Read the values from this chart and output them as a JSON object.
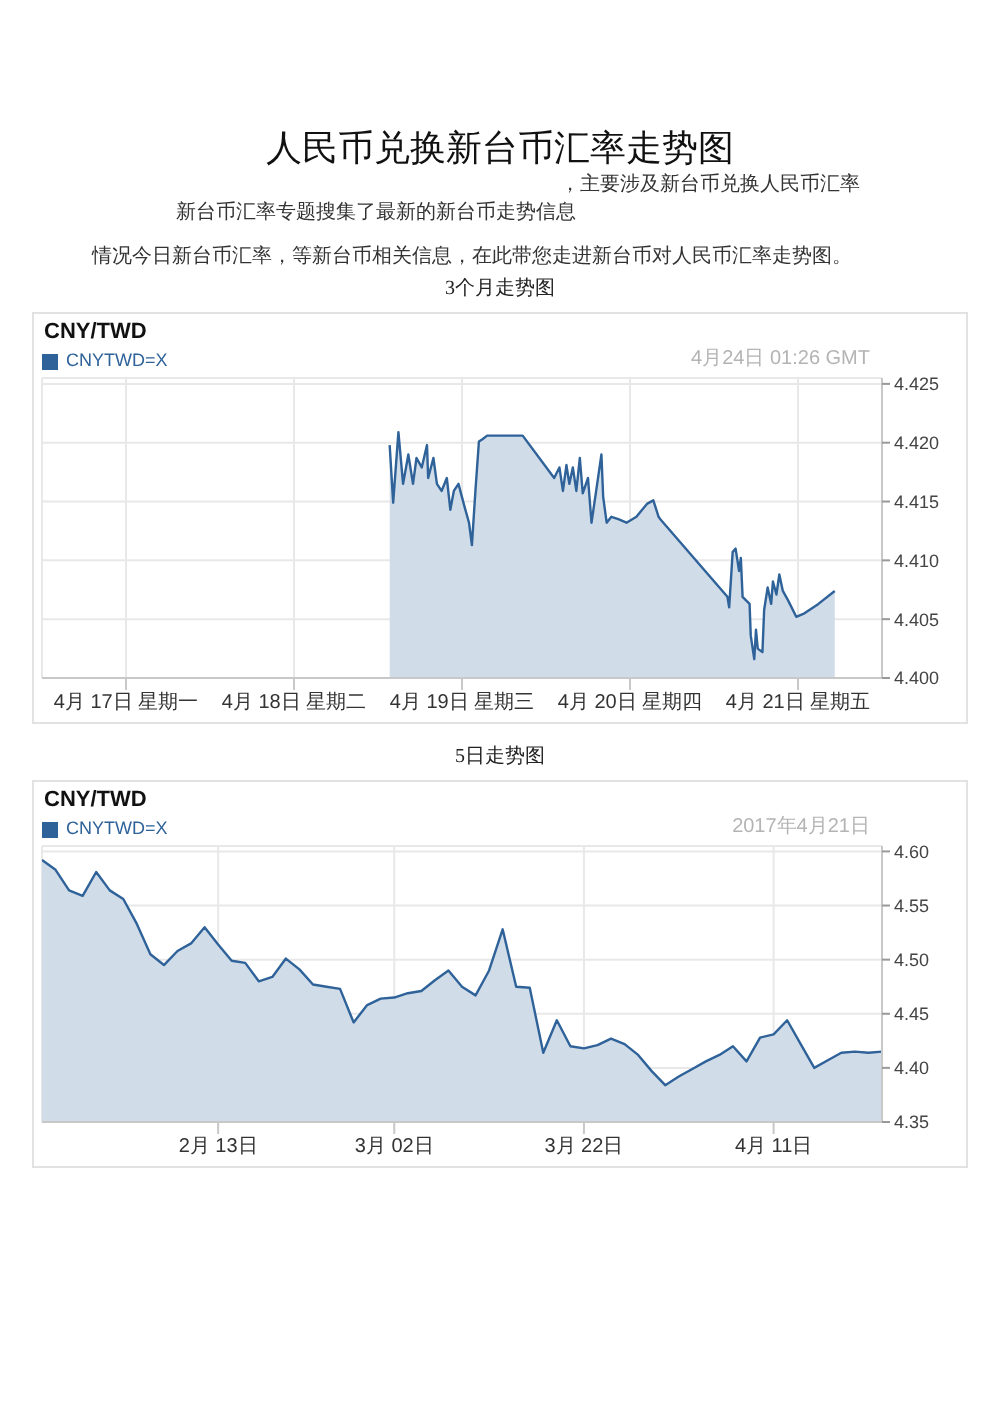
{
  "chart_data": [
    {
      "type": "area",
      "title": "CNY/TWD",
      "subtitle": "4月24日 01:26 GMT",
      "annotations": [
        "人民币兑换新台币汇率走势图",
        "，主要涉及新台币兑换人民币汇率",
        "新台币汇率专题搜集了最新的新台币走势信息",
        "情况今日新台币汇率，等新台币相关信息，在此带您走进新台币对人民币汇率走势图。",
        "3个月走势图"
      ],
      "x": [
        "--04-19T01:40",
        "--04-19T02:10",
        "--04-19T02:55",
        "--04-19T03:35",
        "--04-19T04:20",
        "--04-19T05:00",
        "--04-19T05:30",
        "--04-19T06:15",
        "--04-19T07:00",
        "--04-19T07:10",
        "--04-19T07:55",
        "--04-19T08:25",
        "--04-19T09:05",
        "--04-19T09:50",
        "--04-19T10:20",
        "--04-19T10:50",
        "--04-19T11:30",
        "--04-19T12:15",
        "--04-19T13:00",
        "--04-19T13:25",
        "--04-19T13:55",
        "--04-19T14:25",
        "--04-19T14:55",
        "--04-19T15:35",
        "--04-19T17:30",
        "--04-19T20:40",
        "--04-20T01:10",
        "--04-20T01:55",
        "--04-20T02:25",
        "--04-20T02:55",
        "--04-20T03:20",
        "--04-20T03:50",
        "--04-20T04:20",
        "--04-20T04:50",
        "--04-20T05:15",
        "--04-20T06:00",
        "--04-20T06:30",
        "--04-20T07:10",
        "--04-20T07:55",
        "--04-20T08:10",
        "--04-20T08:40",
        "--04-20T09:20",
        "--04-20T10:20",
        "--04-20T11:30",
        "--04-20T12:55",
        "--04-20T14:25",
        "--04-20T15:20",
        "--04-20T16:05",
        "--04-20T16:20",
        "--04-21T01:55",
        "--04-21T02:10",
        "--04-21T02:40",
        "--04-21T03:05",
        "--04-21T03:35",
        "--04-21T03:50",
        "--04-21T04:05",
        "--04-21T04:35",
        "--04-21T05:05",
        "--04-21T05:15",
        "--04-21T05:45",
        "--04-21T06:00",
        "--04-21T06:15",
        "--04-21T06:55",
        "--04-21T07:10",
        "--04-21T07:40",
        "--04-21T08:10",
        "--04-21T08:25",
        "--04-21T08:55",
        "--04-21T09:20",
        "--04-21T09:50",
        "--04-21T10:35",
        "--04-21T11:45",
        "--04-21T12:55",
        "--04-21T14:55",
        "--04-21T17:15"
      ],
      "series": [
        {
          "name": "CNYTWD=X",
          "color": "#2e6299",
          "values": [
            4.4198,
            4.4149,
            4.4209,
            4.4165,
            4.419,
            4.4165,
            4.4187,
            4.4179,
            4.4198,
            4.417,
            4.4187,
            4.4165,
            4.4159,
            4.417,
            4.4143,
            4.4159,
            4.4165,
            4.4148,
            4.4132,
            4.4113,
            4.4159,
            4.4201,
            4.4203,
            4.4206,
            4.4206,
            4.4206,
            4.417,
            4.4179,
            4.4159,
            4.4181,
            4.4165,
            4.4179,
            4.4159,
            4.4187,
            4.4157,
            4.417,
            4.4132,
            4.4159,
            4.419,
            4.4154,
            4.4132,
            4.4137,
            4.4135,
            4.4132,
            4.4137,
            4.4148,
            4.4151,
            4.4137,
            4.4135,
            4.4069,
            4.406,
            4.4107,
            4.411,
            4.4091,
            4.4102,
            4.4069,
            4.4066,
            4.4063,
            4.4036,
            4.4016,
            4.4041,
            4.4025,
            4.4022,
            4.4058,
            4.4077,
            4.4063,
            4.4082,
            4.4071,
            4.4088,
            4.4074,
            4.4066,
            4.4052,
            4.4055,
            4.4063,
            4.4074
          ]
        }
      ],
      "xlim": [
        "--04-17T00:00",
        "--04-22T00:00"
      ],
      "xticks": [
        {
          "value": "--04-17T12:00",
          "label": "4月 17日 星期一"
        },
        {
          "value": "--04-18T12:00",
          "label": "4月 18日 星期二"
        },
        {
          "value": "--04-19T12:00",
          "label": "4月 19日 星期三"
        },
        {
          "value": "--04-20T12:00",
          "label": "4月 20日 星期四"
        },
        {
          "value": "--04-21T12:00",
          "label": "4月 21日 星期五"
        }
      ],
      "ylim": [
        4.4,
        4.4255
      ],
      "yticks": [
        {
          "value": 4.4,
          "label": "4.400"
        },
        {
          "value": 4.405,
          "label": "4.405"
        },
        {
          "value": 4.41,
          "label": "4.410"
        },
        {
          "value": 4.415,
          "label": "4.415"
        },
        {
          "value": 4.42,
          "label": "4.420"
        },
        {
          "value": 4.425,
          "label": "4.425"
        }
      ],
      "grid": true,
      "legend": "top left"
    },
    {
      "type": "area",
      "title": "CNY/TWD",
      "subtitle": "2017年4月21日",
      "annotations": [
        "5日走势图"
      ],
      "categories": [
        null,
        null,
        null,
        null,
        null,
        null,
        null,
        null,
        null,
        null,
        null,
        null,
        null,
        "2月 13日",
        null,
        null,
        null,
        null,
        null,
        null,
        null,
        null,
        null,
        null,
        null,
        null,
        "3月 02日",
        null,
        null,
        null,
        null,
        null,
        null,
        null,
        null,
        null,
        null,
        null,
        null,
        null,
        "3月 22日",
        null,
        null,
        null,
        null,
        null,
        null,
        null,
        null,
        null,
        null,
        null,
        null,
        null,
        "4月 11日",
        null,
        null,
        null,
        null,
        null,
        null,
        null,
        null
      ],
      "series": [
        {
          "name": "CNYTWD=X",
          "color": "#2e6299",
          "values": [
            4.592,
            4.583,
            4.564,
            4.559,
            4.581,
            4.564,
            4.556,
            4.533,
            4.505,
            4.495,
            4.508,
            4.515,
            4.53,
            4.514,
            4.499,
            4.497,
            4.48,
            4.484,
            4.501,
            4.491,
            4.477,
            4.475,
            4.473,
            4.442,
            4.458,
            4.464,
            4.465,
            4.469,
            4.471,
            4.481,
            4.49,
            4.475,
            4.467,
            4.49,
            4.528,
            4.475,
            4.474,
            4.414,
            4.444,
            4.42,
            4.418,
            4.421,
            4.427,
            4.422,
            4.412,
            4.397,
            4.384,
            4.392,
            4.399,
            4.406,
            4.412,
            4.42,
            4.406,
            4.428,
            4.431,
            4.444,
            4.422,
            4.4,
            4.407,
            4.414,
            4.415,
            4.414,
            4.415
          ]
        }
      ],
      "ylim": [
        4.35,
        4.605
      ],
      "yticks": [
        {
          "value": 4.35,
          "label": "4.35"
        },
        {
          "value": 4.4,
          "label": "4.40"
        },
        {
          "value": 4.45,
          "label": "4.45"
        },
        {
          "value": 4.5,
          "label": "4.50"
        },
        {
          "value": 4.55,
          "label": "4.55"
        },
        {
          "value": 4.6,
          "label": "4.60"
        }
      ],
      "grid": true,
      "legend": "top left"
    }
  ]
}
